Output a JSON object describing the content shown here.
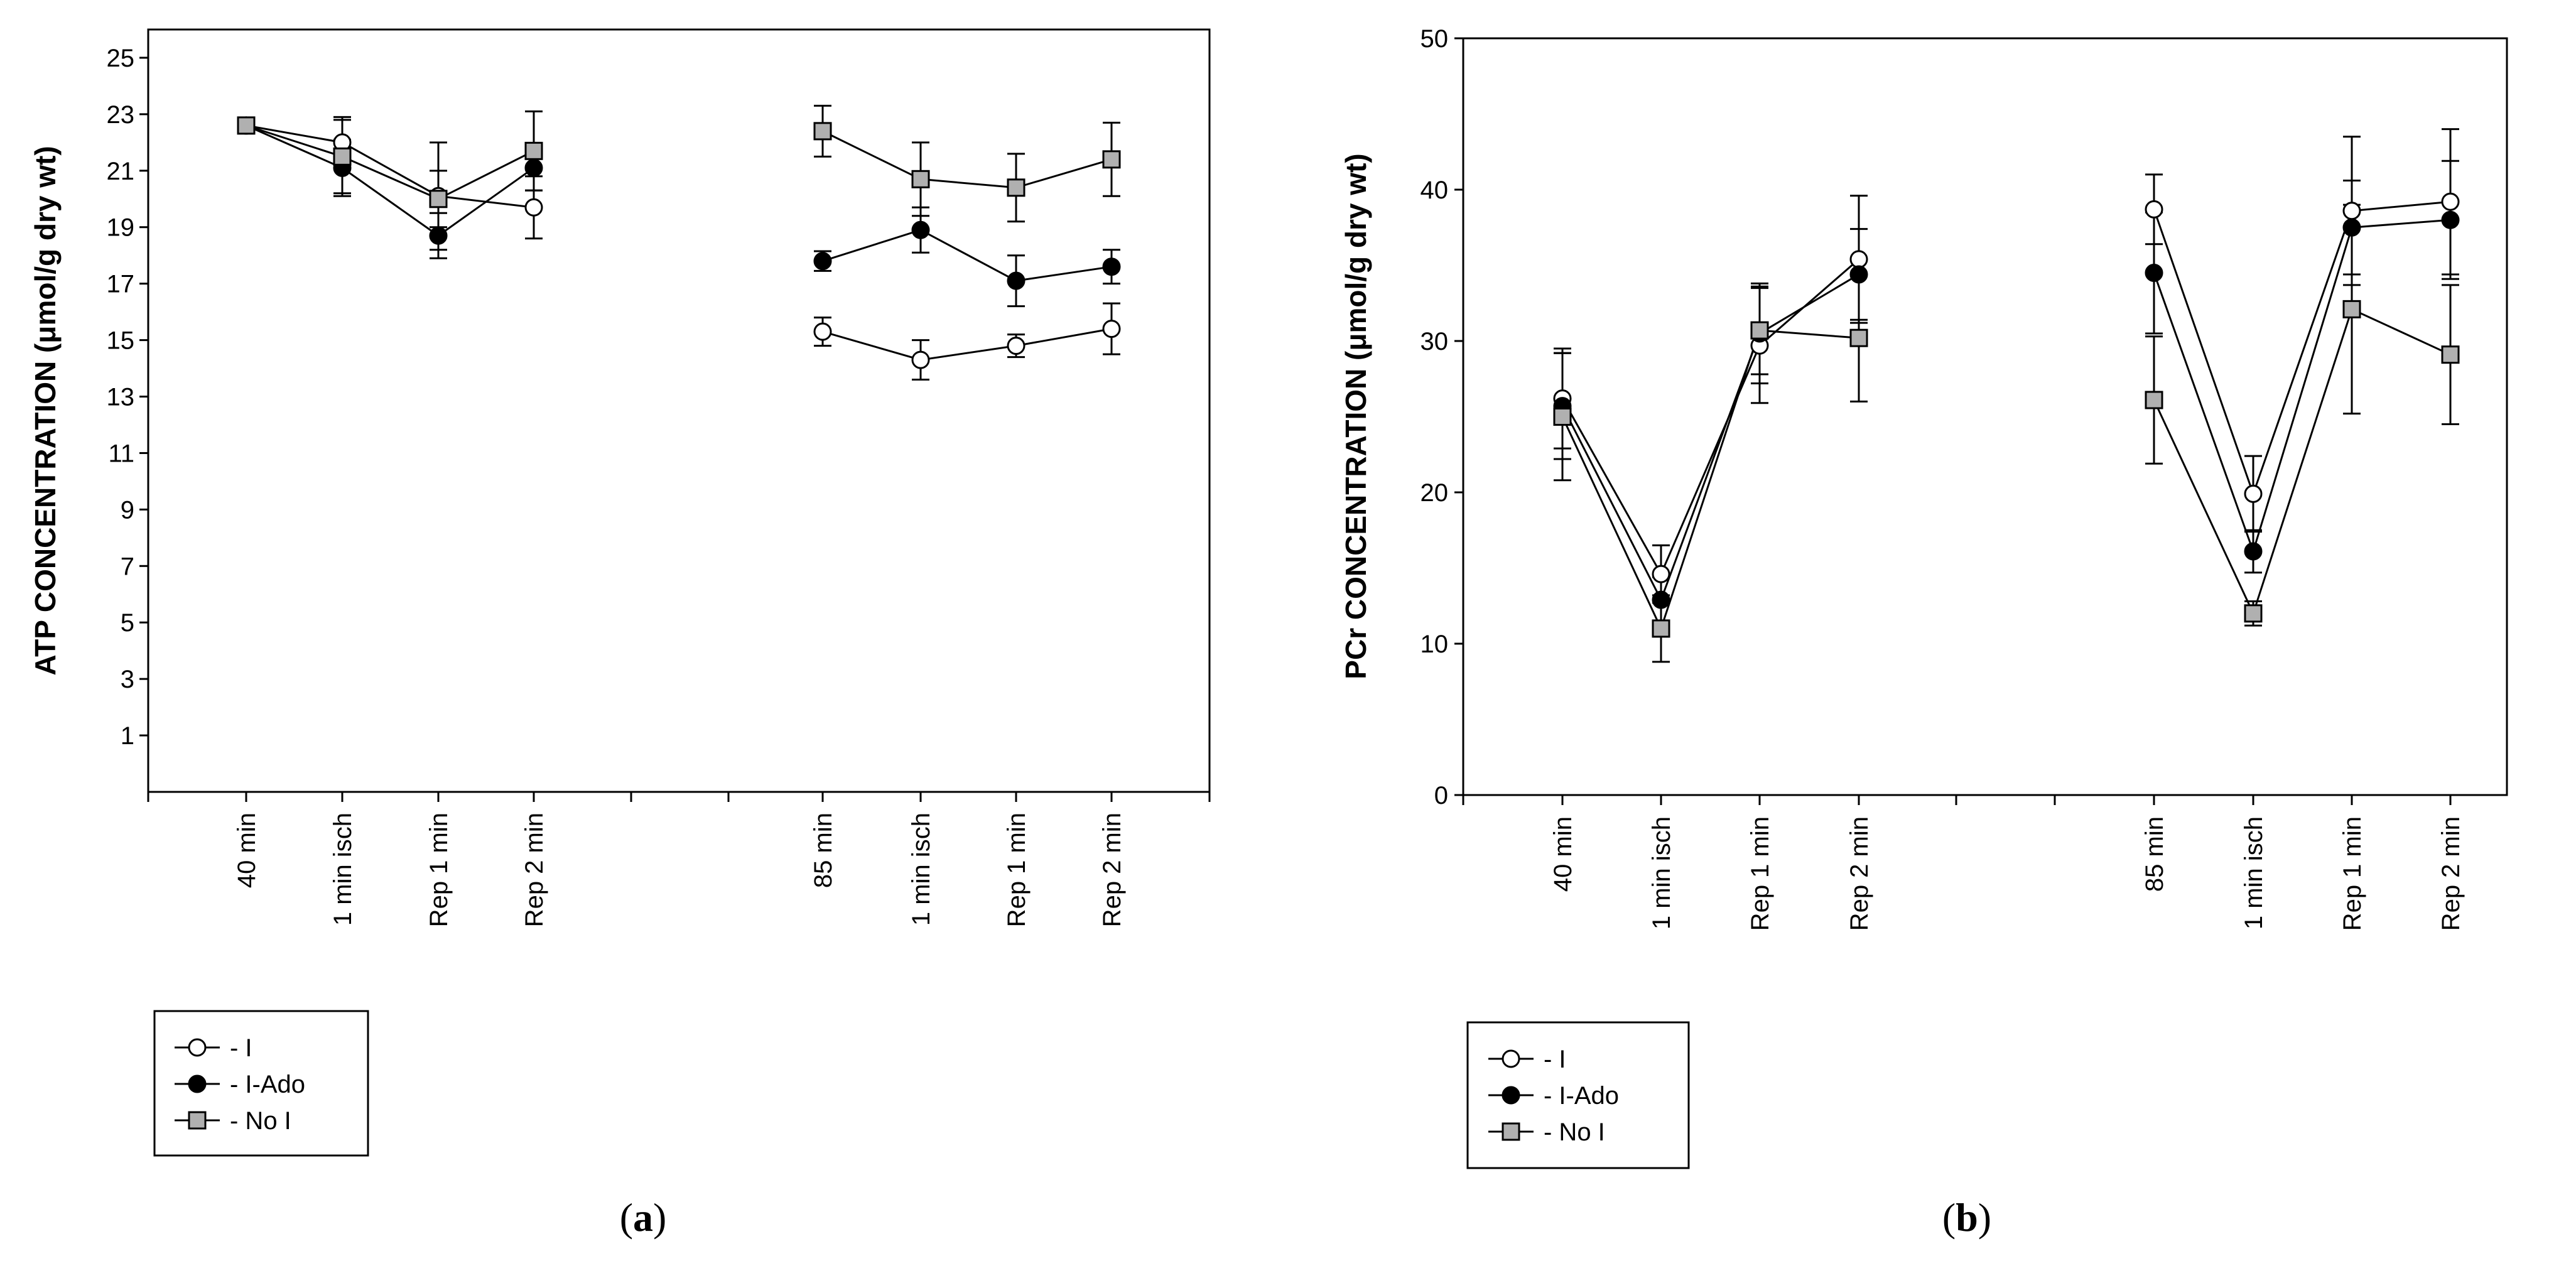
{
  "figure": {
    "panel_a": {
      "caption_open": "(",
      "caption_letter": "a",
      "caption_close": ")"
    },
    "panel_b": {
      "caption_open": "(",
      "caption_letter": "b",
      "caption_close": ")"
    }
  },
  "chart_data": [
    {
      "id": "a",
      "type": "line",
      "ylabel": "ATP CONCENTRATION (μmol/g dry wt)",
      "xlabel": "",
      "ylim": [
        -1,
        26
      ],
      "yticks": [
        1,
        3,
        5,
        7,
        9,
        11,
        13,
        15,
        17,
        19,
        21,
        23,
        25
      ],
      "categories": [
        "40 min",
        "1 min isch",
        "Rep 1 min",
        "Rep 2 min",
        "85 min",
        "1 min isch",
        "Rep 1 min",
        "Rep 2 min"
      ],
      "groups": [
        [
          0,
          1,
          2,
          3
        ],
        [
          4,
          5,
          6,
          7
        ]
      ],
      "legend": {
        "position": "bottom-left",
        "entries": [
          "- I",
          "- I-Ado",
          "- No I"
        ]
      },
      "series": [
        {
          "name": "- I",
          "marker": "circle-open",
          "values": [
            22.6,
            22.0,
            20.1,
            19.7,
            15.3,
            14.3,
            14.8,
            15.4
          ],
          "errors": [
            0.15,
            0.9,
            1.9,
            1.1,
            0.5,
            0.7,
            0.4,
            0.9
          ]
        },
        {
          "name": "- I-Ado",
          "marker": "circle-filled",
          "values": [
            22.6,
            21.1,
            18.7,
            21.1,
            17.8,
            18.9,
            17.1,
            17.6
          ],
          "errors": [
            0.15,
            1.0,
            0.8,
            0.8,
            0.35,
            0.8,
            0.9,
            0.6
          ]
        },
        {
          "name": "- No I",
          "marker": "square-gray",
          "values": [
            22.6,
            21.5,
            20.0,
            21.7,
            22.4,
            20.7,
            20.4,
            21.4
          ],
          "errors": [
            0.15,
            1.3,
            1.0,
            1.4,
            0.9,
            1.3,
            1.2,
            1.3
          ]
        }
      ]
    },
    {
      "id": "b",
      "type": "line",
      "ylabel": "PCr CONCENTRATION (μmol/g dry wt)",
      "xlabel": "",
      "ylim": [
        0,
        50
      ],
      "yticks": [
        0,
        10,
        20,
        30,
        40,
        50
      ],
      "categories": [
        "40 min",
        "1 min isch",
        "Rep 1 min",
        "Rep 2 min",
        "85 min",
        "1 min isch",
        "Rep 1 min",
        "Rep 2 min"
      ],
      "groups": [
        [
          0,
          1,
          2,
          3
        ],
        [
          4,
          5,
          6,
          7
        ]
      ],
      "legend": {
        "position": "bottom-left",
        "entries": [
          "- I",
          "- I-Ado",
          "- No I"
        ]
      },
      "series": [
        {
          "name": "- I",
          "marker": "circle-open",
          "values": [
            26.2,
            14.6,
            29.7,
            35.4,
            38.7,
            19.9,
            38.6,
            39.2
          ],
          "errors": [
            3.3,
            1.9,
            3.8,
            4.2,
            2.3,
            2.5,
            4.9,
            4.8
          ]
        },
        {
          "name": "- I-Ado",
          "marker": "circle-filled",
          "values": [
            25.7,
            12.9,
            30.5,
            34.4,
            34.5,
            16.1,
            37.5,
            38.0
          ],
          "errors": [
            3.5,
            1.5,
            3.3,
            3.0,
            4.0,
            1.4,
            3.1,
            3.9
          ]
        },
        {
          "name": "- No I",
          "marker": "square-gray",
          "values": [
            25.0,
            11.0,
            30.7,
            30.2,
            26.1,
            12.0,
            32.1,
            29.1
          ],
          "errors": [
            4.2,
            2.2,
            2.9,
            4.2,
            4.2,
            0.8,
            6.9,
            4.6
          ]
        }
      ]
    }
  ]
}
